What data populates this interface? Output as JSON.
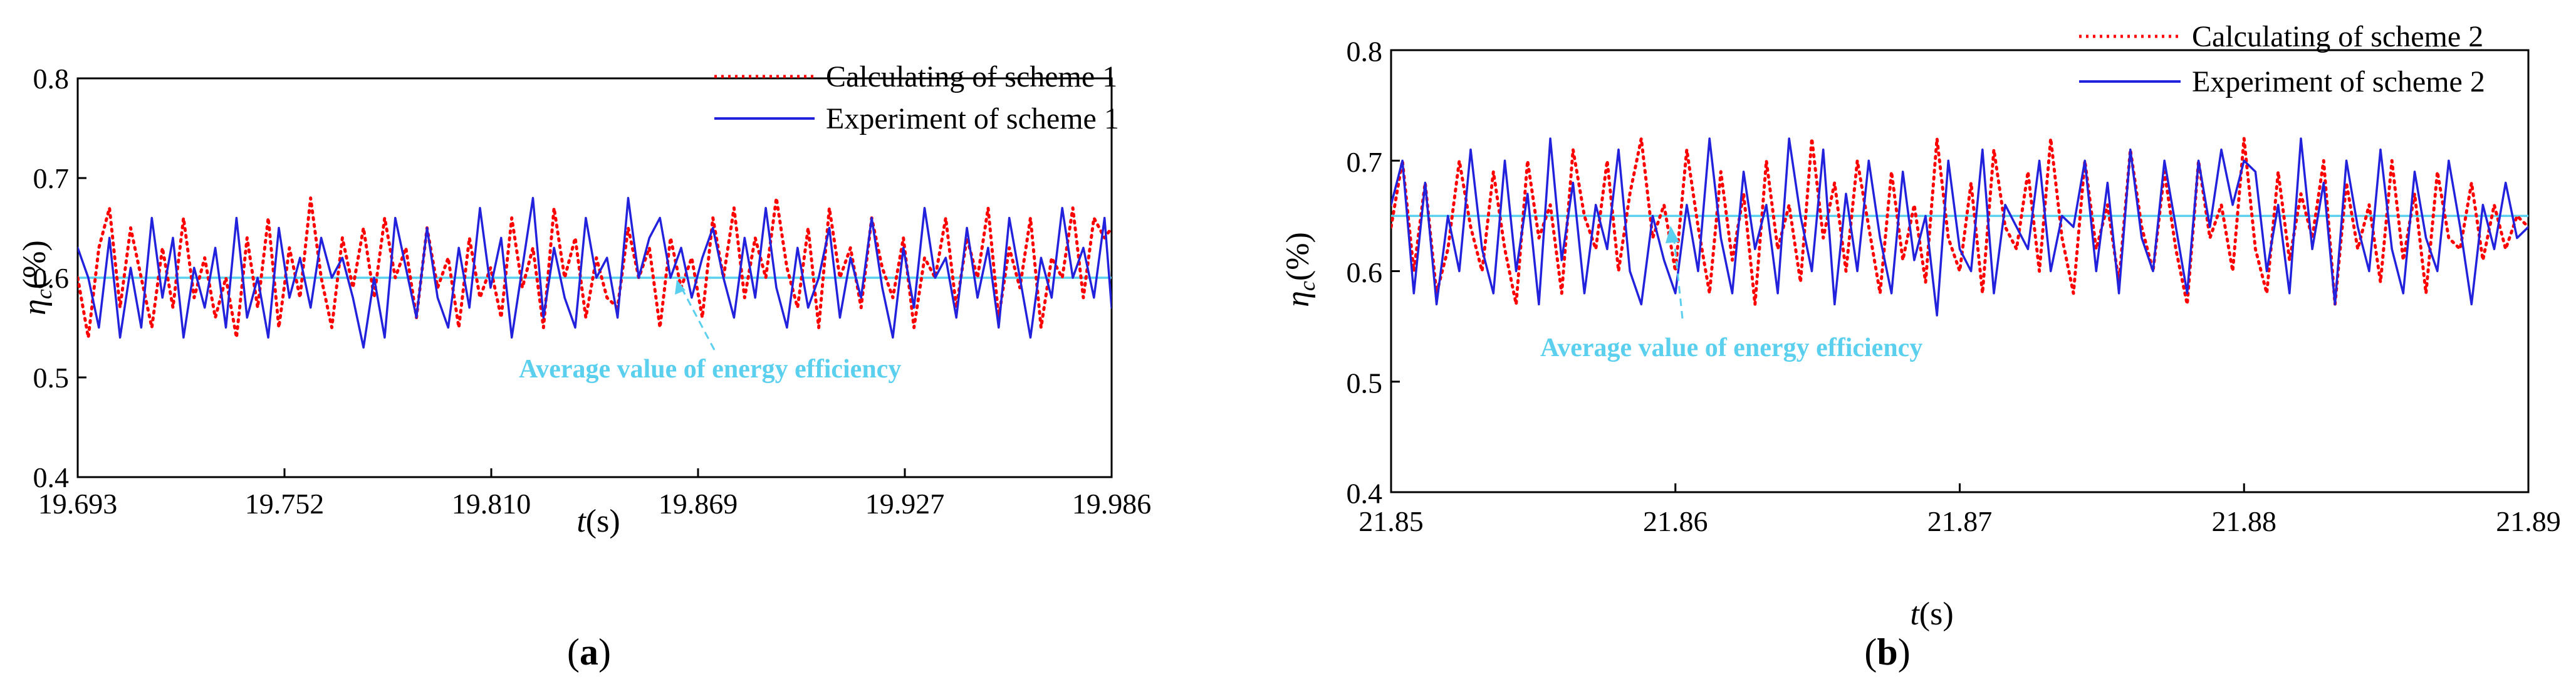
{
  "chart_data": [
    {
      "id": "a",
      "type": "line",
      "panel_label": "(a)",
      "xlabel": "t(s)",
      "ylabel": "ηc(%)",
      "xlim": [
        19.693,
        19.986
      ],
      "ylim": [
        0.4,
        0.8
      ],
      "xticks": [
        "19.693",
        "19.752",
        "19.810",
        "19.869",
        "19.927",
        "19.986"
      ],
      "yticks": [
        "0.4",
        "0.5",
        "0.6",
        "0.7",
        "0.8"
      ],
      "legend_position": "top-right",
      "series": [
        {
          "name": "Calculating of scheme 1",
          "color": "#ff0000",
          "style": "dotted",
          "x": [
            19.693,
            19.696,
            19.699,
            19.702,
            19.705,
            19.708,
            19.711,
            19.714,
            19.717,
            19.72,
            19.723,
            19.726,
            19.729,
            19.732,
            19.735,
            19.738,
            19.741,
            19.744,
            19.747,
            19.75,
            19.753,
            19.756,
            19.759,
            19.762,
            19.765,
            19.768,
            19.771,
            19.774,
            19.777,
            19.78,
            19.783,
            19.786,
            19.789,
            19.792,
            19.795,
            19.798,
            19.801,
            19.804,
            19.807,
            19.81,
            19.813,
            19.816,
            19.819,
            19.822,
            19.825,
            19.828,
            19.831,
            19.834,
            19.837,
            19.84,
            19.843,
            19.846,
            19.849,
            19.852,
            19.855,
            19.858,
            19.861,
            19.864,
            19.867,
            19.87,
            19.873,
            19.876,
            19.879,
            19.882,
            19.885,
            19.888,
            19.891,
            19.894,
            19.897,
            19.9,
            19.903,
            19.906,
            19.909,
            19.912,
            19.915,
            19.918,
            19.921,
            19.924,
            19.927,
            19.93,
            19.933,
            19.936,
            19.939,
            19.942,
            19.945,
            19.948,
            19.951,
            19.954,
            19.957,
            19.96,
            19.963,
            19.966,
            19.969,
            19.972,
            19.975,
            19.978,
            19.981,
            19.984,
            19.986
          ],
          "y": [
            0.6,
            0.54,
            0.63,
            0.67,
            0.57,
            0.65,
            0.6,
            0.55,
            0.63,
            0.57,
            0.66,
            0.58,
            0.62,
            0.56,
            0.6,
            0.54,
            0.64,
            0.57,
            0.66,
            0.55,
            0.63,
            0.58,
            0.68,
            0.6,
            0.55,
            0.64,
            0.59,
            0.65,
            0.58,
            0.66,
            0.6,
            0.63,
            0.56,
            0.65,
            0.59,
            0.62,
            0.55,
            0.64,
            0.58,
            0.61,
            0.56,
            0.66,
            0.59,
            0.63,
            0.55,
            0.67,
            0.6,
            0.64,
            0.56,
            0.62,
            0.58,
            0.57,
            0.65,
            0.6,
            0.63,
            0.55,
            0.64,
            0.59,
            0.62,
            0.56,
            0.66,
            0.6,
            0.67,
            0.58,
            0.64,
            0.6,
            0.68,
            0.61,
            0.57,
            0.65,
            0.55,
            0.67,
            0.6,
            0.63,
            0.57,
            0.66,
            0.61,
            0.58,
            0.64,
            0.55,
            0.62,
            0.6,
            0.66,
            0.57,
            0.64,
            0.6,
            0.67,
            0.56,
            0.63,
            0.59,
            0.66,
            0.55,
            0.62,
            0.6,
            0.67,
            0.58,
            0.66,
            0.64,
            0.65
          ]
        },
        {
          "name": "Experiment of scheme 1",
          "color": "#2222dd",
          "style": "solid",
          "x": [
            19.693,
            19.696,
            19.699,
            19.702,
            19.705,
            19.708,
            19.711,
            19.714,
            19.717,
            19.72,
            19.723,
            19.726,
            19.729,
            19.732,
            19.735,
            19.738,
            19.741,
            19.744,
            19.747,
            19.75,
            19.753,
            19.756,
            19.759,
            19.762,
            19.765,
            19.768,
            19.771,
            19.774,
            19.777,
            19.78,
            19.783,
            19.786,
            19.789,
            19.792,
            19.795,
            19.798,
            19.801,
            19.804,
            19.807,
            19.81,
            19.813,
            19.816,
            19.819,
            19.822,
            19.825,
            19.828,
            19.831,
            19.834,
            19.837,
            19.84,
            19.843,
            19.846,
            19.849,
            19.852,
            19.855,
            19.858,
            19.861,
            19.864,
            19.867,
            19.87,
            19.873,
            19.876,
            19.879,
            19.882,
            19.885,
            19.888,
            19.891,
            19.894,
            19.897,
            19.9,
            19.903,
            19.906,
            19.909,
            19.912,
            19.915,
            19.918,
            19.921,
            19.924,
            19.927,
            19.93,
            19.933,
            19.936,
            19.939,
            19.942,
            19.945,
            19.948,
            19.951,
            19.954,
            19.957,
            19.96,
            19.963,
            19.966,
            19.969,
            19.972,
            19.975,
            19.978,
            19.981,
            19.984,
            19.986
          ],
          "y": [
            0.63,
            0.6,
            0.55,
            0.64,
            0.54,
            0.61,
            0.55,
            0.66,
            0.58,
            0.64,
            0.54,
            0.61,
            0.57,
            0.63,
            0.55,
            0.66,
            0.56,
            0.6,
            0.54,
            0.65,
            0.58,
            0.62,
            0.57,
            0.64,
            0.6,
            0.62,
            0.58,
            0.53,
            0.6,
            0.54,
            0.66,
            0.61,
            0.56,
            0.65,
            0.58,
            0.55,
            0.63,
            0.57,
            0.67,
            0.59,
            0.64,
            0.54,
            0.61,
            0.68,
            0.56,
            0.63,
            0.58,
            0.55,
            0.66,
            0.6,
            0.62,
            0.56,
            0.68,
            0.6,
            0.64,
            0.66,
            0.6,
            0.63,
            0.58,
            0.62,
            0.65,
            0.6,
            0.56,
            0.64,
            0.58,
            0.67,
            0.59,
            0.55,
            0.63,
            0.57,
            0.6,
            0.65,
            0.56,
            0.62,
            0.58,
            0.66,
            0.59,
            0.54,
            0.63,
            0.57,
            0.67,
            0.6,
            0.62,
            0.56,
            0.65,
            0.58,
            0.63,
            0.55,
            0.66,
            0.6,
            0.54,
            0.62,
            0.58,
            0.67,
            0.6,
            0.63,
            0.58,
            0.66,
            0.57
          ]
        },
        {
          "name": "Average value of energy efficiency",
          "color": "#5bd0ee",
          "style": "solid",
          "x": [
            19.693,
            19.986
          ],
          "y": [
            0.6,
            0.6
          ]
        }
      ],
      "annotation": {
        "text": "Average value of energy efficiency",
        "color": "#5bd0ee",
        "points_to": [
          19.861,
          0.6
        ]
      }
    },
    {
      "id": "b",
      "type": "line",
      "panel_label": "(b)",
      "xlabel": "t(s)",
      "ylabel": "ηc(%)",
      "xlim": [
        21.85,
        21.89
      ],
      "ylim": [
        0.4,
        0.8
      ],
      "xticks": [
        "21.85",
        "21.86",
        "21.87",
        "21.88",
        "21.89"
      ],
      "yticks": [
        "0.4",
        "0.5",
        "0.6",
        "0.7",
        "0.8"
      ],
      "legend_position": "top-right",
      "series": [
        {
          "name": "Calculating of scheme 2",
          "color": "#ff0000",
          "style": "dotted",
          "x": [
            21.85,
            21.8504,
            21.8508,
            21.8512,
            21.8516,
            21.852,
            21.8524,
            21.8528,
            21.8532,
            21.8536,
            21.854,
            21.8544,
            21.8548,
            21.8552,
            21.8556,
            21.856,
            21.8564,
            21.8568,
            21.8572,
            21.8576,
            21.858,
            21.8584,
            21.8588,
            21.8592,
            21.8596,
            21.86,
            21.8604,
            21.8608,
            21.8612,
            21.8616,
            21.862,
            21.8624,
            21.8628,
            21.8632,
            21.8636,
            21.864,
            21.8644,
            21.8648,
            21.8652,
            21.8656,
            21.866,
            21.8664,
            21.8668,
            21.8672,
            21.8676,
            21.868,
            21.8684,
            21.8688,
            21.8692,
            21.8696,
            21.87,
            21.8704,
            21.8708,
            21.8712,
            21.8716,
            21.872,
            21.8724,
            21.8728,
            21.8732,
            21.8736,
            21.874,
            21.8744,
            21.8748,
            21.8752,
            21.8756,
            21.876,
            21.8764,
            21.8768,
            21.8772,
            21.8776,
            21.878,
            21.8784,
            21.8788,
            21.8792,
            21.8796,
            21.88,
            21.8804,
            21.8808,
            21.8812,
            21.8816,
            21.882,
            21.8824,
            21.8828,
            21.8832,
            21.8836,
            21.884,
            21.8844,
            21.8848,
            21.8852,
            21.8856,
            21.886,
            21.8864,
            21.8868,
            21.8872,
            21.8876,
            21.888,
            21.8884,
            21.8888,
            21.8892,
            21.8896,
            21.89
          ],
          "y": [
            0.64,
            0.7,
            0.6,
            0.68,
            0.58,
            0.62,
            0.7,
            0.64,
            0.6,
            0.69,
            0.62,
            0.57,
            0.7,
            0.63,
            0.66,
            0.58,
            0.71,
            0.65,
            0.62,
            0.7,
            0.6,
            0.67,
            0.72,
            0.63,
            0.66,
            0.6,
            0.71,
            0.64,
            0.58,
            0.69,
            0.61,
            0.67,
            0.57,
            0.7,
            0.62,
            0.66,
            0.59,
            0.72,
            0.63,
            0.68,
            0.6,
            0.7,
            0.64,
            0.58,
            0.69,
            0.61,
            0.66,
            0.59,
            0.72,
            0.63,
            0.6,
            0.68,
            0.58,
            0.71,
            0.64,
            0.62,
            0.69,
            0.6,
            0.72,
            0.63,
            0.58,
            0.7,
            0.62,
            0.66,
            0.59,
            0.71,
            0.64,
            0.6,
            0.69,
            0.62,
            0.57,
            0.7,
            0.63,
            0.66,
            0.6,
            0.72,
            0.62,
            0.58,
            0.69,
            0.61,
            0.67,
            0.63,
            0.7,
            0.57,
            0.68,
            0.62,
            0.66,
            0.59,
            0.7,
            0.61,
            0.67,
            0.58,
            0.69,
            0.63,
            0.62,
            0.68,
            0.61,
            0.66,
            0.62,
            0.65,
            0.64
          ]
        },
        {
          "name": "Experiment of scheme 2",
          "color": "#2222dd",
          "style": "solid",
          "x": [
            21.85,
            21.8504,
            21.8508,
            21.8512,
            21.8516,
            21.852,
            21.8524,
            21.8528,
            21.8532,
            21.8536,
            21.854,
            21.8544,
            21.8548,
            21.8552,
            21.8556,
            21.856,
            21.8564,
            21.8568,
            21.8572,
            21.8576,
            21.858,
            21.8584,
            21.8588,
            21.8592,
            21.8596,
            21.86,
            21.8604,
            21.8608,
            21.8612,
            21.8616,
            21.862,
            21.8624,
            21.8628,
            21.8632,
            21.8636,
            21.864,
            21.8644,
            21.8648,
            21.8652,
            21.8656,
            21.866,
            21.8664,
            21.8668,
            21.8672,
            21.8676,
            21.868,
            21.8684,
            21.8688,
            21.8692,
            21.8696,
            21.87,
            21.8704,
            21.8708,
            21.8712,
            21.8716,
            21.872,
            21.8724,
            21.8728,
            21.8732,
            21.8736,
            21.874,
            21.8744,
            21.8748,
            21.8752,
            21.8756,
            21.876,
            21.8764,
            21.8768,
            21.8772,
            21.8776,
            21.878,
            21.8784,
            21.8788,
            21.8792,
            21.8796,
            21.88,
            21.8804,
            21.8808,
            21.8812,
            21.8816,
            21.882,
            21.8824,
            21.8828,
            21.8832,
            21.8836,
            21.884,
            21.8844,
            21.8848,
            21.8852,
            21.8856,
            21.886,
            21.8864,
            21.8868,
            21.8872,
            21.8876,
            21.888,
            21.8884,
            21.8888,
            21.8892,
            21.8896,
            21.89
          ],
          "y": [
            0.66,
            0.7,
            0.58,
            0.68,
            0.57,
            0.65,
            0.6,
            0.71,
            0.62,
            0.58,
            0.7,
            0.6,
            0.67,
            0.57,
            0.72,
            0.61,
            0.68,
            0.58,
            0.66,
            0.62,
            0.71,
            0.6,
            0.57,
            0.65,
            0.61,
            0.58,
            0.66,
            0.6,
            0.72,
            0.63,
            0.58,
            0.69,
            0.62,
            0.66,
            0.58,
            0.72,
            0.65,
            0.6,
            0.71,
            0.57,
            0.67,
            0.6,
            0.7,
            0.63,
            0.58,
            0.69,
            0.61,
            0.65,
            0.56,
            0.7,
            0.62,
            0.6,
            0.71,
            0.58,
            0.66,
            0.64,
            0.62,
            0.7,
            0.6,
            0.65,
            0.64,
            0.7,
            0.6,
            0.68,
            0.58,
            0.71,
            0.63,
            0.6,
            0.7,
            0.64,
            0.58,
            0.7,
            0.64,
            0.71,
            0.66,
            0.7,
            0.69,
            0.6,
            0.66,
            0.58,
            0.72,
            0.62,
            0.68,
            0.57,
            0.7,
            0.64,
            0.6,
            0.71,
            0.62,
            0.58,
            0.69,
            0.63,
            0.6,
            0.7,
            0.64,
            0.57,
            0.66,
            0.62,
            0.68,
            0.63,
            0.64
          ]
        },
        {
          "name": "Average value of energy efficiency",
          "color": "#5bd0ee",
          "style": "solid",
          "x": [
            21.85,
            21.89
          ],
          "y": [
            0.65,
            0.65
          ]
        }
      ],
      "annotation": {
        "text": "Average value of energy efficiency",
        "color": "#5bd0ee",
        "points_to": [
          21.8605,
          0.65
        ]
      }
    }
  ]
}
